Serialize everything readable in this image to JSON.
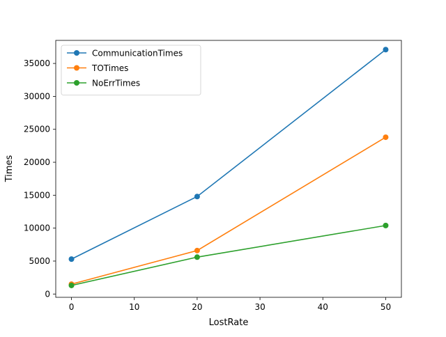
{
  "chart_data": {
    "type": "line",
    "title": "",
    "xlabel": "LostRate",
    "ylabel": "Times",
    "x": [
      0,
      20,
      50
    ],
    "xlim": [
      -2.5,
      52.5
    ],
    "ylim": [
      -500,
      38500
    ],
    "xticks": [
      0,
      10,
      20,
      30,
      40,
      50
    ],
    "yticks": [
      0,
      5000,
      10000,
      15000,
      20000,
      25000,
      30000,
      35000
    ],
    "grid": false,
    "legend_position": "upper-left",
    "series": [
      {
        "name": "CommunicationTimes",
        "color": "#1f77b4",
        "values": [
          5300,
          14800,
          37100
        ]
      },
      {
        "name": "TOTimes",
        "color": "#ff7f0e",
        "values": [
          1500,
          6600,
          23800
        ]
      },
      {
        "name": "NoErrTimes",
        "color": "#2ca02c",
        "values": [
          1300,
          5600,
          10400
        ]
      }
    ]
  }
}
